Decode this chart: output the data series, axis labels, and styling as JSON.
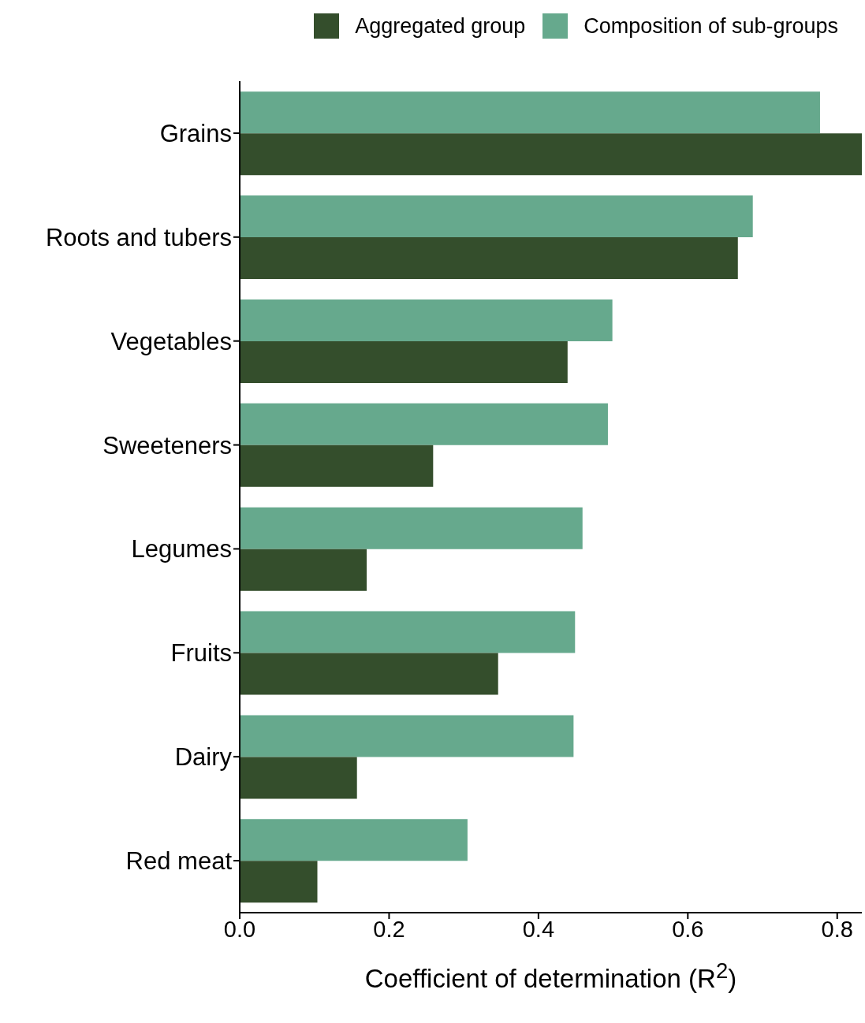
{
  "chart_data": {
    "type": "bar",
    "orientation": "horizontal",
    "xlabel": "Coefficient of determination (R$^{2}$)",
    "categories": [
      "Grains",
      "Roots and tubers",
      "Vegetables",
      "Sweeteners",
      "Legumes",
      "Fruits",
      "Dairy",
      "Red meat"
    ],
    "series": [
      {
        "name": "Aggregated group",
        "color": "#344e2c",
        "values": [
          0.833,
          0.667,
          0.439,
          0.259,
          0.17,
          0.346,
          0.157,
          0.104
        ]
      },
      {
        "name": "Composition of sub-groups",
        "color": "#66a98d",
        "values": [
          0.777,
          0.687,
          0.499,
          0.493,
          0.459,
          0.449,
          0.447,
          0.305
        ]
      }
    ],
    "xlim": [
      0,
      0.833
    ],
    "xticks": [
      {
        "value": 0,
        "label": "0.0"
      },
      {
        "value": 0.2,
        "label": "0.2"
      },
      {
        "value": 0.4,
        "label": "0.4"
      },
      {
        "value": 0.6,
        "label": "0.6"
      },
      {
        "value": 0.8,
        "label": "0.8"
      }
    ],
    "grid": false,
    "legend": "top right"
  }
}
